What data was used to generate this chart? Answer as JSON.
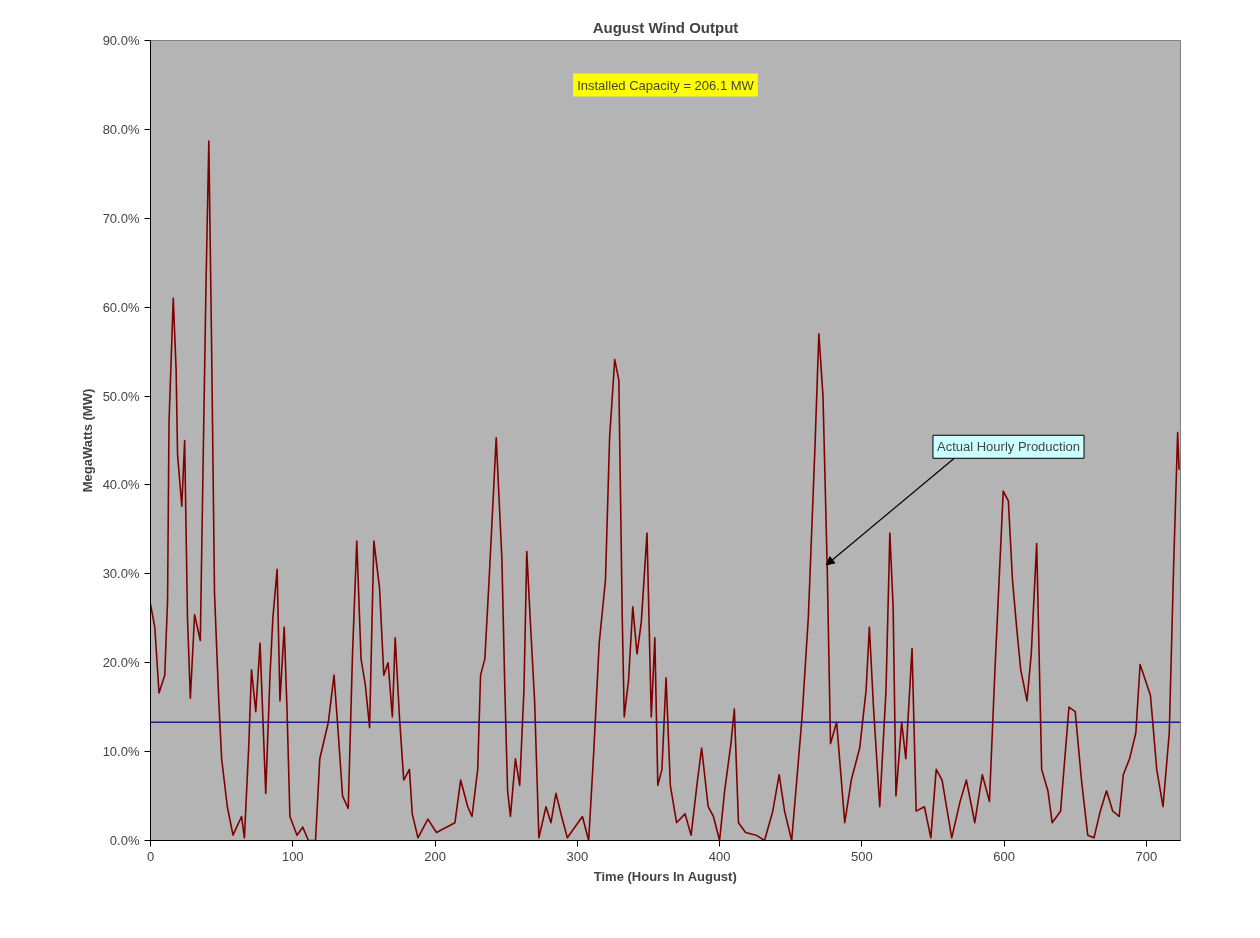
{
  "chart_data": {
    "type": "line",
    "title": "August Wind Output",
    "xlabel": "Time (Hours In August)",
    "ylabel": "MegaWatts (MW)",
    "xlim": [
      0,
      724
    ],
    "xticks": [
      0,
      100,
      200,
      300,
      400,
      500,
      600,
      700
    ],
    "ylim": [
      0,
      90
    ],
    "yticks": [
      {
        "value": 0,
        "label": "0.0%"
      },
      {
        "value": 10,
        "label": "10.0%"
      },
      {
        "value": 20,
        "label": "20.0%"
      },
      {
        "value": 30,
        "label": "30.0%"
      },
      {
        "value": 40,
        "label": "40.0%"
      },
      {
        "value": 50,
        "label": "50.0%"
      },
      {
        "value": 60,
        "label": "60.0%"
      },
      {
        "value": 70,
        "label": "70.0%"
      },
      {
        "value": 80,
        "label": "80.0%"
      },
      {
        "value": 90,
        "label": "90.0%"
      }
    ],
    "grid": false,
    "annotations": [
      "Installed Capacity = 206.1 MW",
      {
        "text": "Actual Hourly Production",
        "x": 475,
        "y": 31
      }
    ],
    "ref_lines": [
      {
        "axis": "y",
        "value": 13.3,
        "label": null,
        "color": "#1c1c8c"
      }
    ],
    "series": [
      {
        "color": "#800000",
        "x": [
          0,
          3,
          6,
          10,
          12,
          13,
          16,
          18,
          19,
          22,
          24,
          26,
          28,
          31,
          35,
          37,
          39,
          41,
          43,
          45,
          48,
          50,
          54,
          58,
          64,
          66,
          69,
          71,
          74,
          77,
          81,
          84,
          86,
          89,
          91,
          94,
          96,
          98,
          103,
          107,
          111,
          116,
          119,
          125,
          129,
          132,
          135,
          139,
          142,
          145,
          148,
          151,
          154,
          157,
          161,
          164,
          167,
          170,
          172,
          175,
          178,
          182,
          184,
          188,
          195,
          201,
          214,
          218,
          223,
          226,
          230,
          232,
          235,
          238,
          243,
          247,
          249,
          251,
          253,
          256.5,
          259.5,
          262.5,
          264.5,
          267,
          270,
          273,
          278,
          281.5,
          285,
          289,
          293,
          303.6,
          308,
          311.5,
          315.4,
          319.8,
          322.7,
          326.3,
          329.2,
          331.6,
          333,
          336,
          339,
          342,
          345,
          349,
          352,
          354.5,
          356.6,
          359.5,
          362.4,
          365.4,
          369.8,
          375.7,
          380,
          384.5,
          387.4,
          392,
          395.7,
          400,
          403.6,
          408,
          410.4,
          413.3,
          418.3,
          425.7,
          431.6,
          437.4,
          441.9,
          445.7,
          450.7,
          458,
          462.4,
          467,
          469.8,
          472.7,
          475.7,
          478,
          482.3,
          488,
          492.6,
          498.5,
          503,
          505.3,
          508.2,
          512.6,
          517,
          519.7,
          522,
          524,
          528,
          530.9,
          535.3,
          538.2,
          544,
          548.5,
          552.3,
          556.4,
          563.2,
          569.1,
          573.5,
          579.4,
          584.7,
          589.7,
          593.5,
          599.4,
          603,
          605.9,
          608.8,
          611.7,
          616.1,
          619.1,
          622.9,
          626.4,
          630.8,
          633.8,
          639.7,
          645.6,
          650,
          654.4,
          658.8,
          663.2,
          667.6,
          672,
          676.4,
          680.9,
          683.8,
          688.2,
          692.6,
          695.6,
          699.4,
          702.9,
          707.3,
          711.7,
          716.1,
          719.1,
          722,
          723
        ],
        "values": [
          26.6,
          24,
          16.6,
          18.6,
          27,
          47,
          61,
          53,
          43.5,
          37.6,
          45,
          25,
          16,
          25.4,
          22.5,
          42.6,
          62.4,
          78.7,
          55,
          27.8,
          15.7,
          9.2,
          3.8,
          0.6,
          2.7,
          0.3,
          10.4,
          19.2,
          14.5,
          22.2,
          5.3,
          18.6,
          25,
          30.5,
          15.7,
          24,
          14.5,
          2.7,
          0.6,
          1.5,
          0,
          0,
          9.2,
          13.3,
          18.6,
          12,
          5,
          3.6,
          21,
          33.7,
          20.4,
          17.5,
          12.7,
          33.7,
          28.4,
          18.6,
          20,
          13.9,
          22.8,
          13.9,
          6.8,
          8,
          3,
          0.3,
          2.4,
          0.9,
          2,
          6.8,
          3.8,
          2.7,
          8,
          18.6,
          20.4,
          29.3,
          45.3,
          31.7,
          17.5,
          5.6,
          2.7,
          9.2,
          6.2,
          16.9,
          32.5,
          24.6,
          15.7,
          0.3,
          3.8,
          2,
          5.3,
          2.7,
          0.3,
          2.7,
          0,
          9.8,
          22.2,
          29.3,
          45.3,
          54.1,
          51.8,
          25.1,
          13.9,
          18,
          26.3,
          21,
          24.6,
          34.6,
          13.9,
          22.8,
          6.2,
          8,
          18.3,
          6.2,
          2,
          3,
          0.6,
          6.8,
          10.4,
          3.8,
          2.7,
          0,
          5.6,
          10.9,
          14.8,
          2,
          0.9,
          0.6,
          0,
          3.3,
          7.4,
          3.3,
          0,
          13.9,
          25.1,
          44,
          57,
          50,
          30.5,
          10.9,
          13.3,
          2,
          6.8,
          10.4,
          16.9,
          24,
          15,
          3.8,
          16.9,
          34.6,
          26.3,
          5,
          13.3,
          9.2,
          21.6,
          3.3,
          3.8,
          0.3,
          8,
          6.8,
          0.3,
          4.4,
          6.8,
          2,
          7.4,
          4.4,
          18.9,
          39.3,
          38.2,
          29.3,
          24,
          19.2,
          15.7,
          21,
          33.4,
          8,
          5.6,
          2,
          3.3,
          15,
          14.5,
          6.8,
          0.6,
          0.3,
          3.3,
          5.6,
          3.3,
          2.7,
          7.4,
          9.2,
          12.1,
          19.8,
          18,
          16.3,
          8,
          3.8,
          12.1,
          30.5,
          45.9,
          41.7
        ]
      }
    ]
  }
}
